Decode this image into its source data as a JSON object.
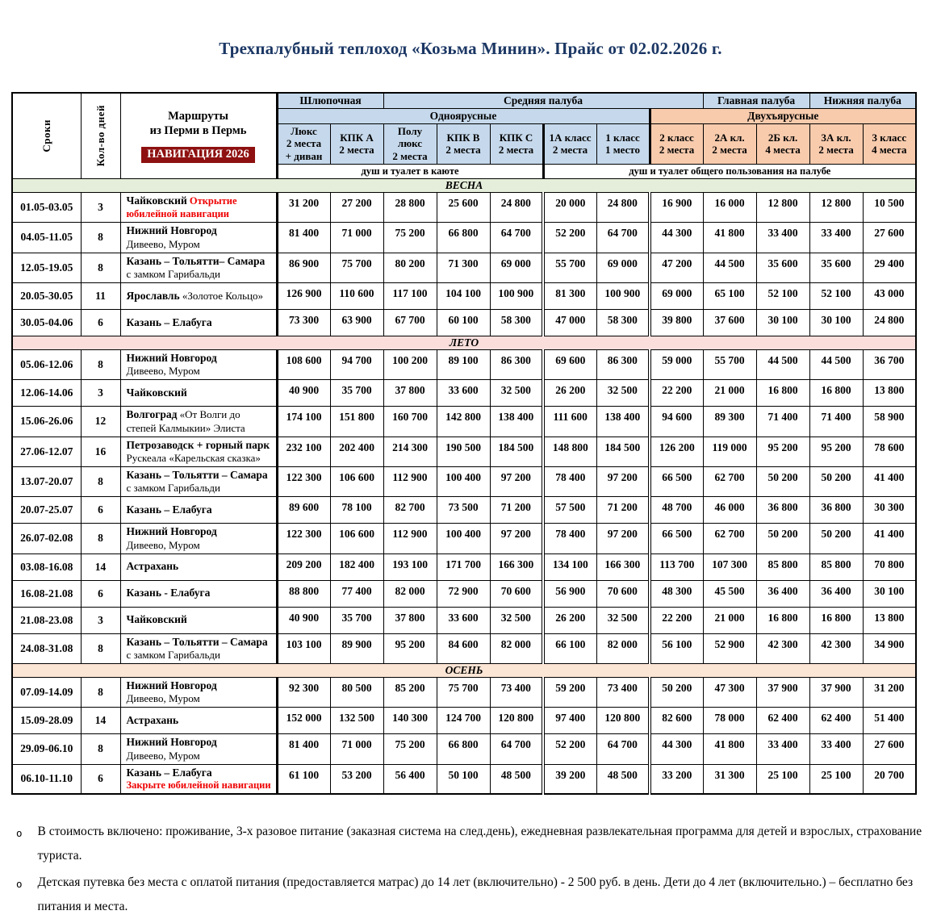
{
  "title": "Трехпалубный теплоход «Козьма Минин». Прайс от 02.02.2026 г.",
  "colors": {
    "header_blue": "#c6d9ec",
    "header_orange": "#f8cbad",
    "spring": "#e5eeda",
    "summer": "#f9dedc",
    "autumn": "#fbe5d5",
    "badge_red": "#8e1010",
    "note_red": "#ee0000",
    "title_navy": "#1b3764"
  },
  "table": {
    "corner": {
      "col1": "Сроки",
      "col2": "Кол-во дней",
      "routes_line1": "Маршруты",
      "routes_line2": "из Перми в Пермь",
      "badge": "НАВИГАЦИЯ 2026"
    },
    "decks": [
      {
        "label": "Шлюпочная",
        "span": 2
      },
      {
        "label": "Средняя палуба",
        "span": 6
      },
      {
        "label": "Главная палуба",
        "span": 2
      },
      {
        "label": "Нижняя палуба",
        "span": 2
      }
    ],
    "tiers": [
      {
        "label": "Одноярусные",
        "span": 7,
        "type": "blue"
      },
      {
        "label": "Двухъярусные",
        "span": 5,
        "type": "orange"
      }
    ],
    "cabins": [
      {
        "lines": [
          "Люкс",
          "2 места",
          "+ диван"
        ],
        "type": "blue"
      },
      {
        "lines": [
          "КПК А",
          "2 места"
        ],
        "type": "blue"
      },
      {
        "lines": [
          "Полу",
          "люкс",
          "2 места"
        ],
        "type": "blue"
      },
      {
        "lines": [
          "КПК В",
          "2 места"
        ],
        "type": "blue"
      },
      {
        "lines": [
          "КПК С",
          "2 места"
        ],
        "type": "blue"
      },
      {
        "lines": [
          "1А класс",
          "2 места"
        ],
        "type": "blue"
      },
      {
        "lines": [
          "1 класс",
          "1 место"
        ],
        "type": "blue"
      },
      {
        "lines": [
          "2 класс",
          "2 места"
        ],
        "type": "orange"
      },
      {
        "lines": [
          "2А кл.",
          "2 места"
        ],
        "type": "orange"
      },
      {
        "lines": [
          "2Б кл.",
          "4 места"
        ],
        "type": "orange"
      },
      {
        "lines": [
          "3А кл.",
          "2 места"
        ],
        "type": "orange"
      },
      {
        "lines": [
          "3 класс",
          "4 места"
        ],
        "type": "orange"
      }
    ],
    "facilities": [
      {
        "label": "душ и туалет в каюте",
        "span": 5
      },
      {
        "label": "душ и туалет общего пользования на палубе",
        "span": 7
      }
    ],
    "sections": [
      {
        "season": "ВЕСНА",
        "cls": "spring",
        "rows": [
          {
            "d": "01.05-03.05",
            "n": "3",
            "b": "Чайковский",
            "red": "Открытие юбилейной навигации",
            "redBreak": false,
            "p": [
              "31 200",
              "27 200",
              "28 800",
              "25 600",
              "24 800",
              "20 000",
              "24 800",
              "16 900",
              "16 000",
              "12 800",
              "12 800",
              "10 500"
            ]
          },
          {
            "d": "04.05-11.05",
            "n": "8",
            "b": "Нижний Новгород",
            "r": "Дивеево, Муром",
            "rBreak": true,
            "p": [
              "81 400",
              "71 000",
              "75 200",
              "66 800",
              "64 700",
              "52 200",
              "64 700",
              "44 300",
              "41 800",
              "33 400",
              "33 400",
              "27 600"
            ]
          },
          {
            "d": "12.05-19.05",
            "n": "8",
            "b": "Казань – Тольятти– Самара",
            "r": "с замком Гарибальди",
            "rBreak": true,
            "p": [
              "86 900",
              "75 700",
              "80 200",
              "71 300",
              "69 000",
              "55 700",
              "69 000",
              "47 200",
              "44 500",
              "35 600",
              "35 600",
              "29 400"
            ]
          },
          {
            "d": "20.05-30.05",
            "n": "11",
            "b": "Ярославль",
            "r": "«Золотое Кольцо»",
            "rBreak": false,
            "p": [
              "126 900",
              "110 600",
              "117 100",
              "104 100",
              "100 900",
              "81 300",
              "100 900",
              "69 000",
              "65 100",
              "52 100",
              "52 100",
              "43 000"
            ]
          },
          {
            "d": "30.05-04.06",
            "n": "6",
            "b": "Казань – Елабуга",
            "p": [
              "73 300",
              "63 900",
              "67 700",
              "60 100",
              "58 300",
              "47 000",
              "58 300",
              "39 800",
              "37 600",
              "30 100",
              "30 100",
              "24 800"
            ]
          }
        ]
      },
      {
        "season": "ЛЕТО",
        "cls": "summer",
        "rows": [
          {
            "d": "05.06-12.06",
            "n": "8",
            "b": "Нижний Новгород",
            "r": "Дивеево, Муром",
            "rBreak": true,
            "p": [
              "108 600",
              "94 700",
              "100 200",
              "89 100",
              "86 300",
              "69 600",
              "86 300",
              "59 000",
              "55 700",
              "44 500",
              "44 500",
              "36 700"
            ]
          },
          {
            "d": "12.06-14.06",
            "n": "3",
            "b": "Чайковский",
            "p": [
              "40 900",
              "35 700",
              "37 800",
              "33 600",
              "32 500",
              "26 200",
              "32 500",
              "22 200",
              "21 000",
              "16 800",
              "16 800",
              "13 800"
            ]
          },
          {
            "d": "15.06-26.06",
            "n": "12",
            "b": "Волгоград",
            "r": "«От Волги до степей Калмыкии» Элиста",
            "rBreak": false,
            "p": [
              "174 100",
              "151 800",
              "160 700",
              "142 800",
              "138 400",
              "111 600",
              "138 400",
              "94 600",
              "89 300",
              "71 400",
              "71 400",
              "58 900"
            ]
          },
          {
            "d": "27.06-12.07",
            "n": "16",
            "b": "Петрозаводск + горный парк",
            "r": "Рускеала «Карельская сказка»",
            "rBreak": false,
            "p": [
              "232 100",
              "202 400",
              "214 300",
              "190 500",
              "184 500",
              "148 800",
              "184 500",
              "126 200",
              "119 000",
              "95 200",
              "95 200",
              "78 600"
            ]
          },
          {
            "d": "13.07-20.07",
            "n": "8",
            "b": "Казань – Тольятти – Самара",
            "r": "с замком Гарибальди",
            "rBreak": true,
            "p": [
              "122 300",
              "106 600",
              "112 900",
              "100 400",
              "97 200",
              "78 400",
              "97 200",
              "66 500",
              "62 700",
              "50 200",
              "50 200",
              "41 400"
            ]
          },
          {
            "d": "20.07-25.07",
            "n": "6",
            "b": "Казань – Елабуга",
            "p": [
              "89 600",
              "78 100",
              "82 700",
              "73 500",
              "71 200",
              "57 500",
              "71 200",
              "48 700",
              "46 000",
              "36 800",
              "36 800",
              "30 300"
            ]
          },
          {
            "d": "26.07-02.08",
            "n": "8",
            "b": "Нижний Новгород",
            "r": "Дивеево, Муром",
            "rBreak": true,
            "p": [
              "122 300",
              "106 600",
              "112 900",
              "100 400",
              "97 200",
              "78 400",
              "97 200",
              "66 500",
              "62 700",
              "50 200",
              "50 200",
              "41 400"
            ]
          },
          {
            "d": "03.08-16.08",
            "n": "14",
            "b": "Астрахань",
            "p": [
              "209 200",
              "182 400",
              "193 100",
              "171 700",
              "166 300",
              "134 100",
              "166 300",
              "113 700",
              "107 300",
              "85 800",
              "85 800",
              "70 800"
            ]
          },
          {
            "d": "16.08-21.08",
            "n": "6",
            "b": "Казань - Елабуга",
            "p": [
              "88 800",
              "77 400",
              "82 000",
              "72 900",
              "70 600",
              "56 900",
              "70 600",
              "48 300",
              "45 500",
              "36 400",
              "36 400",
              "30 100"
            ]
          },
          {
            "d": "21.08-23.08",
            "n": "3",
            "b": "Чайковский",
            "p": [
              "40 900",
              "35 700",
              "37 800",
              "33 600",
              "32 500",
              "26 200",
              "32 500",
              "22 200",
              "21 000",
              "16 800",
              "16 800",
              "13 800"
            ]
          },
          {
            "d": "24.08-31.08",
            "n": "8",
            "b": "Казань – Тольятти – Самара",
            "r": "с замком Гарибальди",
            "rBreak": true,
            "p": [
              "103 100",
              "89 900",
              "95 200",
              "84 600",
              "82 000",
              "66 100",
              "82 000",
              "56 100",
              "52 900",
              "42 300",
              "42 300",
              "34 900"
            ]
          }
        ]
      },
      {
        "season": "ОСЕНЬ",
        "cls": "autumn",
        "rows": [
          {
            "d": "07.09-14.09",
            "n": "8",
            "b": "Нижний Новгород",
            "r": "Дивеево, Муром",
            "rBreak": true,
            "p": [
              "92 300",
              "80 500",
              "85 200",
              "75 700",
              "73 400",
              "59 200",
              "73 400",
              "50 200",
              "47 300",
              "37 900",
              "37 900",
              "31 200"
            ]
          },
          {
            "d": "15.09-28.09",
            "n": "14",
            "b": "Астрахань",
            "p": [
              "152 000",
              "132 500",
              "140 300",
              "124 700",
              "120 800",
              "97 400",
              "120 800",
              "82 600",
              "78 000",
              "62 400",
              "62 400",
              "51 400"
            ]
          },
          {
            "d": "29.09-06.10",
            "n": "8",
            "b": "Нижний Новгород",
            "r": "Дивеево, Муром",
            "rBreak": true,
            "p": [
              "81 400",
              "71 000",
              "75 200",
              "66 800",
              "64 700",
              "52 200",
              "64 700",
              "44 300",
              "41 800",
              "33 400",
              "33 400",
              "27 600"
            ]
          },
          {
            "d": "06.10-11.10",
            "n": "6",
            "b": "Казань – Елабуга",
            "red": "Закрыте юбилейной навигации",
            "redBreak": true,
            "p": [
              "61 100",
              "53 200",
              "56 400",
              "50 100",
              "48 500",
              "39 200",
              "48 500",
              "33 200",
              "31 300",
              "25 100",
              "25 100",
              "20 700"
            ]
          }
        ]
      }
    ]
  },
  "notes": [
    "В стоимость включено: проживание, 3-х разовое питание (заказная система на след.день), ежедневная развлекательная программа для детей и взрослых, страхование туриста.",
    "Детская путевка без места с оплатой питания (предоставляется матрас) до 14 лет (включительно) - 2 500 руб. в день. Дети до 4 лет (включительно.) – бесплатно без питания и места."
  ]
}
